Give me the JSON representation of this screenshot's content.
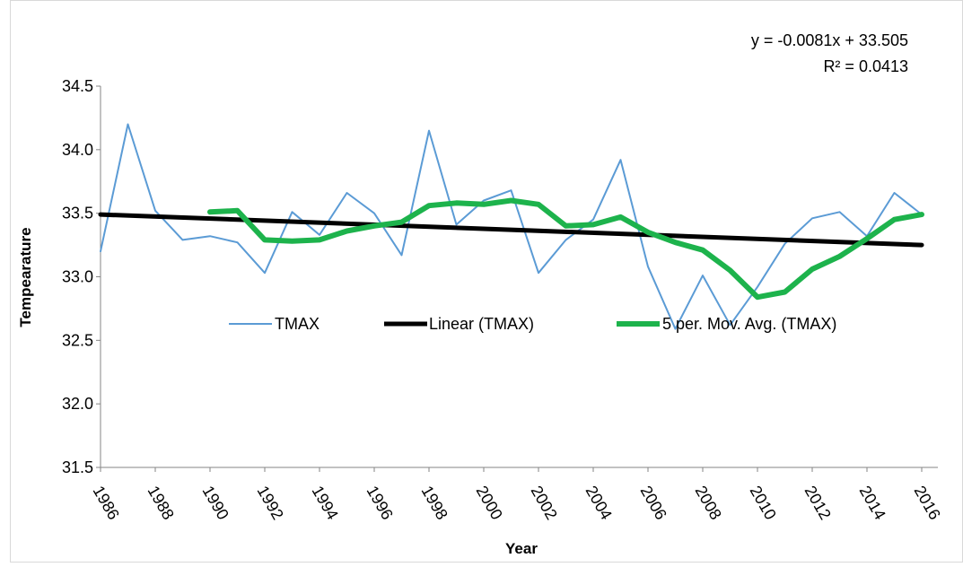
{
  "chart_data": {
    "type": "line",
    "xlabel": "Year",
    "ylabel": "Tempearature",
    "ylim": [
      31.5,
      34.5
    ],
    "yticks": [
      "31.5",
      "32.0",
      "32.5",
      "33.0",
      "33.5",
      "34.0",
      "34.5"
    ],
    "xlim": [
      1986,
      2016
    ],
    "xticks": [
      "1986",
      "1988",
      "1990",
      "1992",
      "1994",
      "1996",
      "1998",
      "2000",
      "2002",
      "2004",
      "2006",
      "2008",
      "2010",
      "2012",
      "2014",
      "2016"
    ],
    "grid": false,
    "legend_position": "inside-middle",
    "series": [
      {
        "name": "TMAX",
        "color": "#5B9BD5",
        "x": [
          1986,
          1987,
          1988,
          1989,
          1990,
          1991,
          1992,
          1993,
          1994,
          1995,
          1996,
          1997,
          1998,
          1999,
          2000,
          2001,
          2002,
          2003,
          2004,
          2005,
          2006,
          2007,
          2008,
          2009,
          2010,
          2011,
          2012,
          2013,
          2014,
          2015,
          2016
        ],
        "values": [
          33.2,
          34.2,
          33.52,
          33.29,
          33.32,
          33.27,
          33.03,
          33.51,
          33.33,
          33.66,
          33.5,
          33.17,
          34.15,
          33.41,
          33.6,
          33.68,
          33.03,
          33.29,
          33.45,
          33.92,
          33.08,
          32.59,
          33.01,
          32.62,
          32.92,
          33.26,
          33.46,
          33.51,
          33.32,
          33.66,
          33.49
        ]
      },
      {
        "name": "Linear (TMAX)",
        "color": "#000000",
        "x": [
          1986,
          2016
        ],
        "values": [
          33.49,
          33.25
        ]
      },
      {
        "name": "5 per. Mov. Avg. (TMAX)",
        "color": "#1DB34C",
        "x": [
          1990,
          1991,
          1992,
          1993,
          1994,
          1995,
          1996,
          1997,
          1998,
          1999,
          2000,
          2001,
          2002,
          2003,
          2004,
          2005,
          2006,
          2007,
          2008,
          2009,
          2010,
          2011,
          2012,
          2013,
          2014,
          2015,
          2016
        ],
        "values": [
          33.51,
          33.52,
          33.29,
          33.28,
          33.29,
          33.36,
          33.4,
          33.43,
          33.56,
          33.58,
          33.57,
          33.6,
          33.57,
          33.4,
          33.41,
          33.47,
          33.35,
          33.27,
          33.21,
          33.05,
          32.84,
          32.88,
          33.06,
          33.16,
          33.3,
          33.45,
          33.49
        ]
      }
    ],
    "annotations": {
      "equation": "y = -0.0081x + 33.505",
      "r_squared": "R² = 0.0413"
    }
  }
}
